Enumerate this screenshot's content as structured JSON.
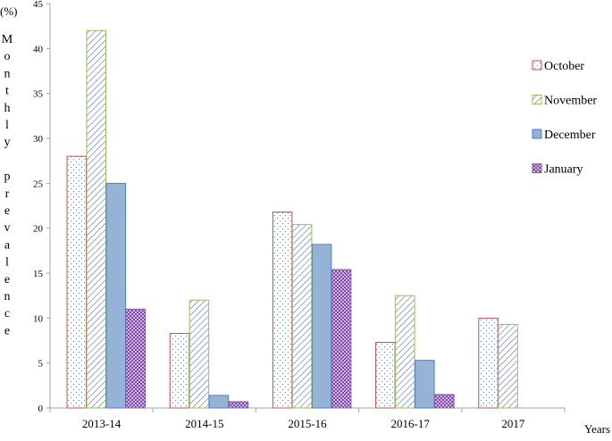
{
  "chart_data": {
    "type": "bar",
    "categories": [
      "2013-14",
      "2014-15",
      "2015-16",
      "2016-17",
      "2017"
    ],
    "series": [
      {
        "name": "October",
        "values": [
          28,
          8.3,
          21.8,
          7.3,
          10
        ]
      },
      {
        "name": "November",
        "values": [
          42,
          12,
          20.4,
          12.5,
          9.3
        ]
      },
      {
        "name": "December",
        "values": [
          25,
          1.4,
          18.2,
          5.3,
          null
        ]
      },
      {
        "name": "January",
        "values": [
          11,
          0.7,
          15.4,
          1.5,
          null
        ]
      }
    ],
    "ylim": [
      0,
      45
    ],
    "yticks": [
      0,
      5,
      10,
      15,
      20,
      25,
      30,
      35,
      40,
      45
    ],
    "ylabel_unit": "(%)",
    "ylabel_letters": [
      "M",
      "o",
      "n",
      "t",
      "h",
      "l",
      "y",
      "",
      "p",
      "r",
      "e",
      "v",
      "a",
      "l",
      "e",
      "n",
      "c",
      "e"
    ],
    "xlabel": "Years",
    "legend_position": "right",
    "grid": false,
    "colors": {
      "October": {
        "fill": "#ffffff",
        "stroke": "#c0504d",
        "pattern": "#4f81bd"
      },
      "November": {
        "fill": "#ffffff",
        "stroke": "#9bbb59",
        "pattern": "#4f6fa8"
      },
      "December": {
        "fill": "#95b3d7",
        "stroke": "#4f81bd",
        "pattern": "#95b3d7"
      },
      "January": {
        "fill": "#ffffff",
        "stroke": "#8064a2",
        "pattern": "#7030a0"
      }
    }
  }
}
